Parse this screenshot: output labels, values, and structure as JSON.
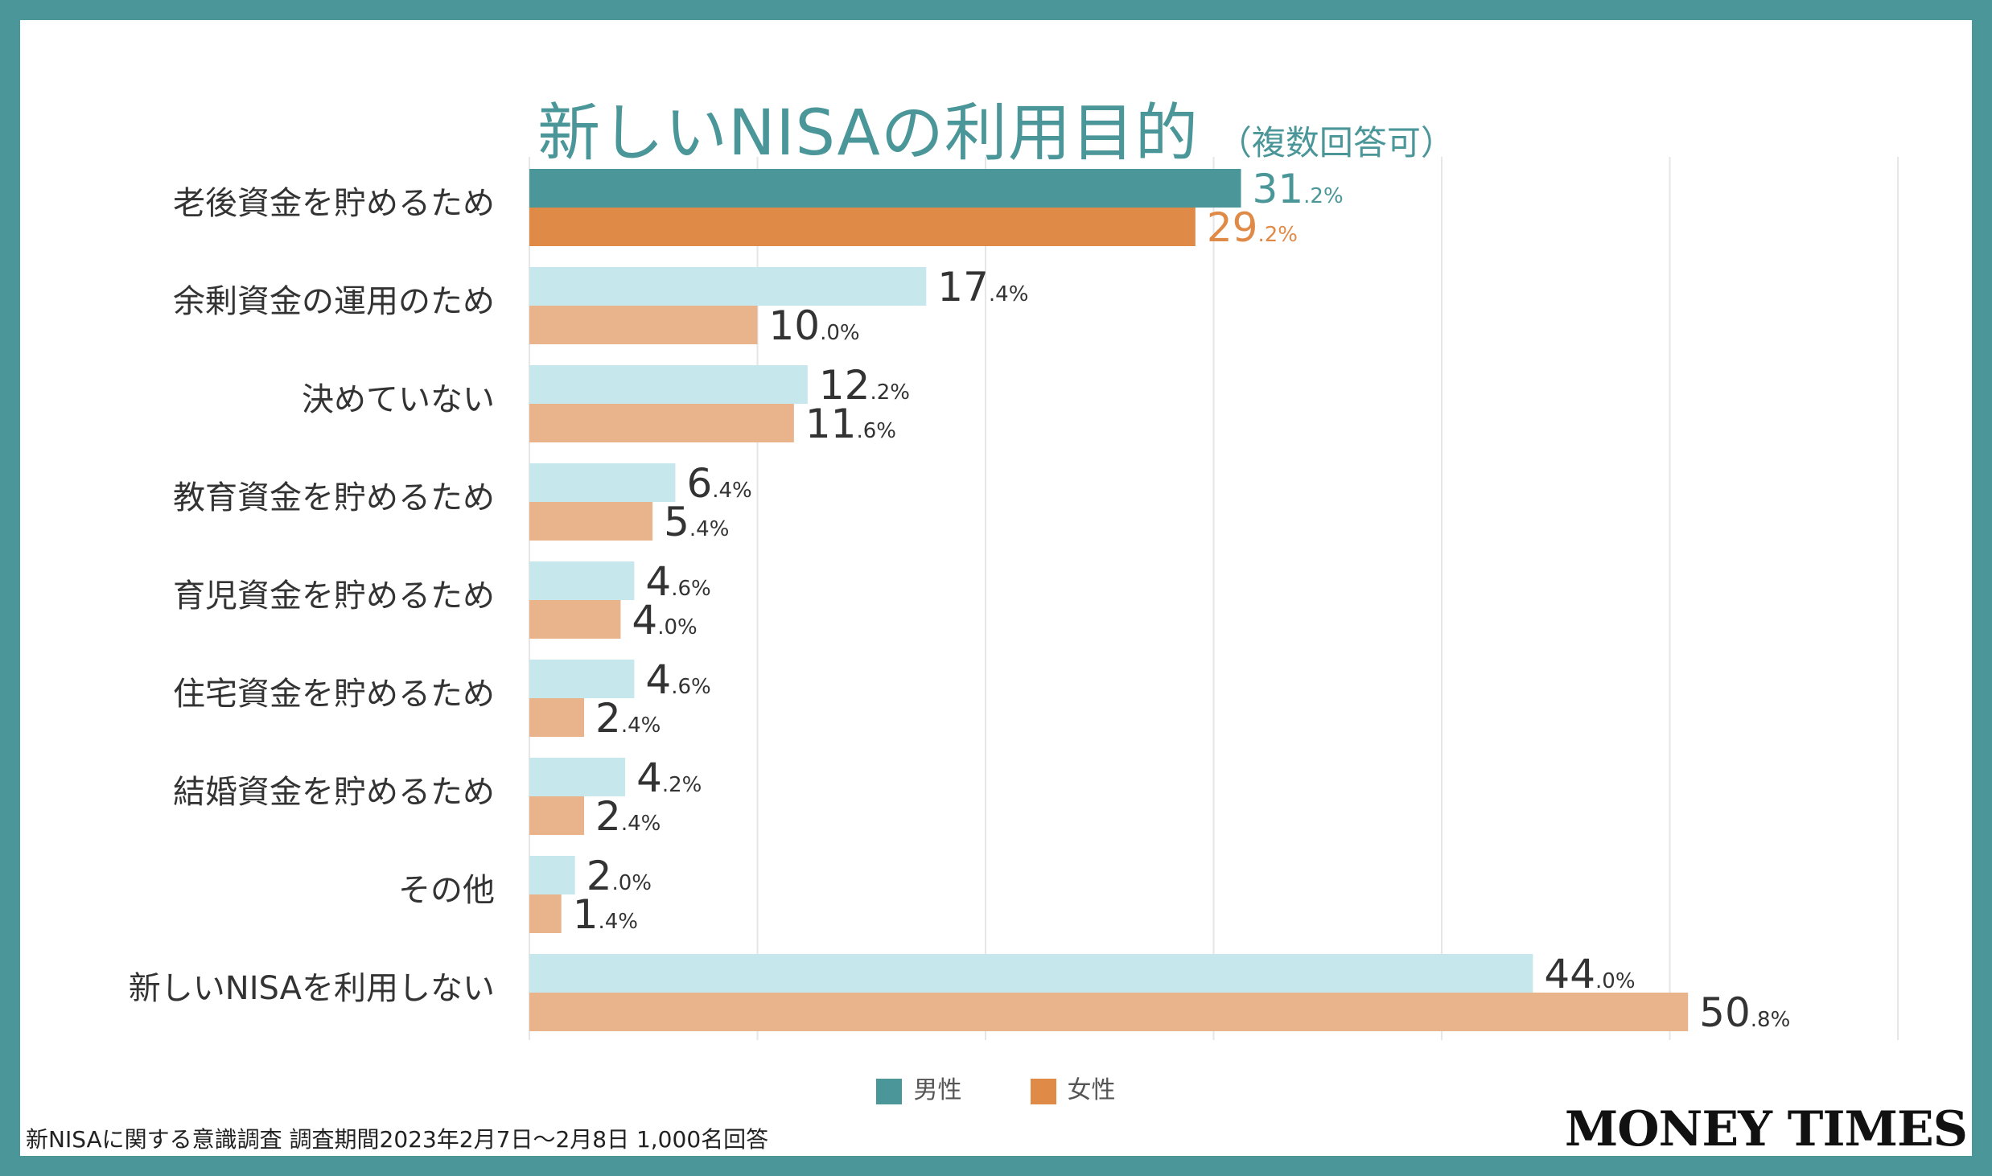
{
  "title": "新しいNISAの利用目的",
  "subtitle": "（複数回答可）",
  "legend": [
    {
      "label": "男性",
      "color": "#4a9698"
    },
    {
      "label": "女性",
      "color": "#e08a47"
    }
  ],
  "footnote": "新NISAに関する意識調査 調査期間2023年2月7日〜2月8日 1,000名回答",
  "brand": "MONEY TIMES",
  "colors": {
    "male_highlight": "#4a9698",
    "female_highlight": "#e08a47",
    "male_light": "#c6e8ec",
    "female_light": "#e9b48b",
    "grid": "#e6e6e6",
    "category_text": "#333333",
    "value_text": "#333333"
  },
  "chart_data": {
    "type": "bar",
    "orientation": "horizontal",
    "title": "新しいNISAの利用目的",
    "subtitle": "（複数回答可）",
    "unit": "%",
    "xlim": [
      0,
      60
    ],
    "grid": true,
    "categories": [
      "老後資金を貯めるため",
      "余剰資金の運用のため",
      "決めていない",
      "教育資金を貯めるため",
      "育児資金を貯めるため",
      "住宅資金を貯めるため",
      "結婚資金を貯めるため",
      "その他",
      "新しいNISAを利用しない"
    ],
    "series": [
      {
        "name": "男性",
        "values": [
          31.2,
          17.4,
          12.2,
          6.4,
          4.6,
          4.6,
          4.2,
          2.0,
          44.0
        ]
      },
      {
        "name": "女性",
        "values": [
          29.2,
          10.0,
          11.6,
          5.4,
          4.0,
          2.4,
          2.4,
          1.4,
          50.8
        ]
      }
    ],
    "value_labels": {
      "男性": [
        {
          "int": "31",
          "dec": ".2%"
        },
        {
          "int": "17",
          "dec": ".4%"
        },
        {
          "int": "12",
          "dec": ".2%"
        },
        {
          "int": "6",
          "dec": ".4%"
        },
        {
          "int": "4",
          "dec": ".6%"
        },
        {
          "int": "4",
          "dec": ".6%"
        },
        {
          "int": "4",
          "dec": ".2%"
        },
        {
          "int": "2",
          "dec": ".0%"
        },
        {
          "int": "44",
          "dec": ".0%"
        }
      ],
      "女性": [
        {
          "int": "29",
          "dec": ".2%"
        },
        {
          "int": "10",
          "dec": ".0%"
        },
        {
          "int": "11",
          "dec": ".6%"
        },
        {
          "int": "5",
          "dec": ".4%"
        },
        {
          "int": "4",
          "dec": ".0%"
        },
        {
          "int": "2",
          "dec": ".4%"
        },
        {
          "int": "2",
          "dec": ".4%"
        },
        {
          "int": "1",
          "dec": ".4%"
        },
        {
          "int": "50",
          "dec": ".8%"
        }
      ]
    },
    "highlight_index": 0
  }
}
